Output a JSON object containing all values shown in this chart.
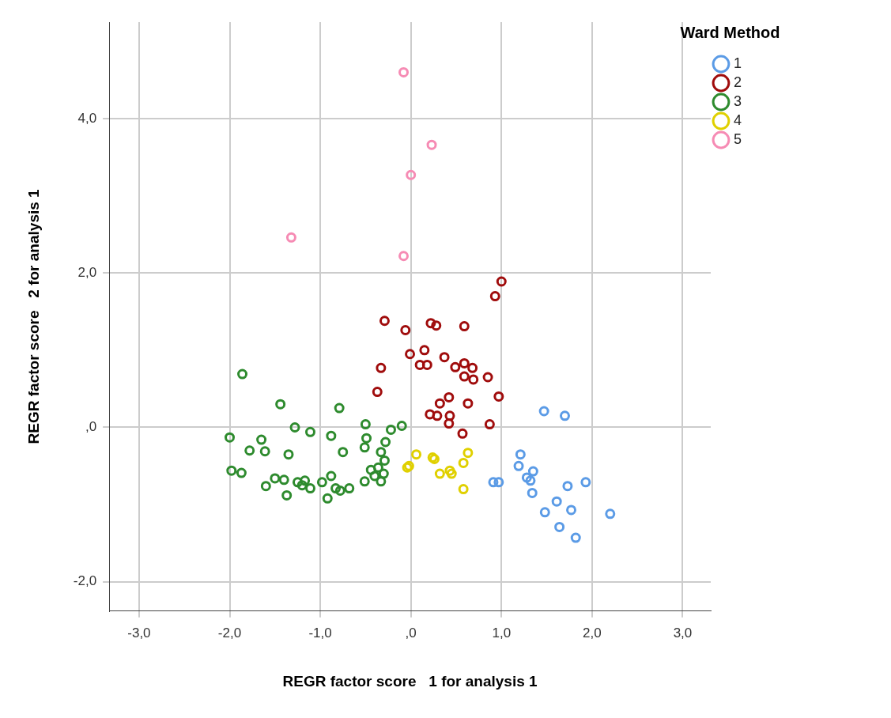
{
  "chart_data": {
    "type": "scatter",
    "xlabel": "REGR factor score   1 for analysis 1",
    "ylabel": "REGR factor score   2 for analysis 1",
    "legend_title": "Ward Method",
    "legend": "top right",
    "grid": true,
    "marker": "circle",
    "xlim": [
      -3.33,
      3.31
    ],
    "ylim": [
      -2.38,
      5.25
    ],
    "xticks": [
      {
        "value": -3,
        "label": "-3,0"
      },
      {
        "value": -2,
        "label": "-2,0"
      },
      {
        "value": -1,
        "label": "-1,0"
      },
      {
        "value": 0,
        "label": ",0"
      },
      {
        "value": 1,
        "label": "1,0"
      },
      {
        "value": 2,
        "label": "2,0"
      },
      {
        "value": 3,
        "label": "3,0"
      }
    ],
    "yticks": [
      {
        "value": -2,
        "label": "-2,0"
      },
      {
        "value": 0,
        "label": ",0"
      },
      {
        "value": 2,
        "label": "2,0"
      },
      {
        "value": 4,
        "label": "4,0"
      }
    ],
    "series": [
      {
        "name": "1",
        "color": "#5b9be6",
        "x": [
          1.47,
          1.7,
          1.21,
          1.19,
          1.35,
          1.28,
          1.32,
          1.34,
          0.91,
          0.97,
          1.93,
          1.73,
          1.61,
          1.48,
          1.77,
          1.64,
          1.82,
          2.2
        ],
        "values": [
          0.21,
          0.15,
          -0.35,
          -0.5,
          -0.57,
          -0.65,
          -0.69,
          -0.85,
          -0.71,
          -0.71,
          -0.71,
          -0.76,
          -0.96,
          -1.1,
          -1.07,
          -1.29,
          -1.43,
          -1.12
        ]
      },
      {
        "name": "2",
        "color": "#a00c0c",
        "x": [
          1.0,
          0.93,
          -0.29,
          -0.06,
          0.22,
          0.28,
          0.59,
          -0.01,
          0.15,
          -0.33,
          0.1,
          0.18,
          0.37,
          0.49,
          0.59,
          0.68,
          0.59,
          0.69,
          0.85,
          -0.37,
          0.97,
          0.42,
          0.32,
          0.63,
          0.21,
          0.29,
          0.43,
          0.42,
          0.87,
          0.57
        ],
        "values": [
          1.89,
          1.7,
          1.38,
          1.26,
          1.35,
          1.32,
          1.31,
          0.95,
          1.0,
          0.77,
          0.81,
          0.81,
          0.91,
          0.78,
          0.83,
          0.77,
          0.66,
          0.62,
          0.65,
          0.46,
          0.4,
          0.39,
          0.31,
          0.31,
          0.17,
          0.15,
          0.15,
          0.05,
          0.04,
          -0.08
        ]
      },
      {
        "name": "3",
        "color": "#2e8b2e",
        "x": [
          -1.86,
          -1.44,
          -0.79,
          -1.28,
          -1.11,
          -2.0,
          -1.65,
          -0.88,
          -0.5,
          -0.49,
          -0.51,
          -0.22,
          -0.1,
          -0.28,
          -1.78,
          -1.61,
          -1.35,
          -0.75,
          -0.33,
          -0.29,
          -1.98,
          -1.87,
          -0.44,
          -0.36,
          -0.3,
          -0.4,
          -0.33,
          -0.51,
          -1.5,
          -1.4,
          -1.6,
          -1.25,
          -1.17,
          -1.2,
          -1.11,
          -0.98,
          -0.88,
          -0.83,
          -0.78,
          -0.68,
          -1.37,
          -0.92
        ],
        "values": [
          0.69,
          0.3,
          0.25,
          0.0,
          -0.06,
          -0.13,
          -0.16,
          -0.11,
          0.04,
          -0.14,
          -0.26,
          -0.03,
          0.02,
          -0.19,
          -0.3,
          -0.31,
          -0.35,
          -0.32,
          -0.32,
          -0.43,
          -0.56,
          -0.59,
          -0.55,
          -0.52,
          -0.6,
          -0.63,
          -0.7,
          -0.7,
          -0.66,
          -0.68,
          -0.76,
          -0.71,
          -0.69,
          -0.75,
          -0.79,
          -0.71,
          -0.63,
          -0.79,
          -0.82,
          -0.79,
          -0.88,
          -0.92
        ]
      },
      {
        "name": "4",
        "color": "#e0d000",
        "x": [
          0.06,
          -0.02,
          -0.04,
          0.24,
          0.26,
          0.32,
          0.43,
          0.45,
          0.63,
          0.58,
          0.58
        ],
        "values": [
          -0.35,
          -0.5,
          -0.52,
          -0.39,
          -0.41,
          -0.6,
          -0.56,
          -0.6,
          -0.33,
          -0.46,
          -0.8
        ]
      },
      {
        "name": "5",
        "color": "#f68bb4",
        "x": [
          -0.08,
          0.23,
          0.0,
          -1.32,
          -0.08
        ],
        "values": [
          4.6,
          3.66,
          3.27,
          2.46,
          2.22
        ]
      }
    ]
  }
}
